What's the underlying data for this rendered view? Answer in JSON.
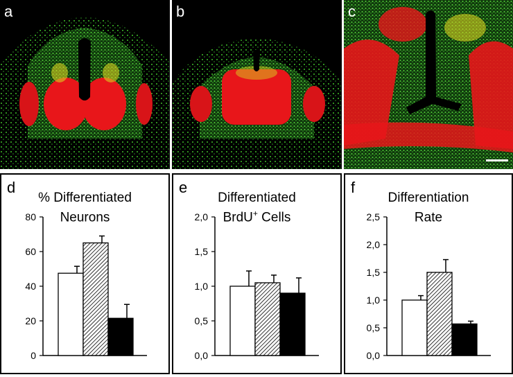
{
  "panels": [
    {
      "label": "a"
    },
    {
      "label": "b"
    },
    {
      "label": "c"
    }
  ],
  "colors": {
    "red": "#e8161a",
    "green": "#3fbf2a",
    "yellow": "#d8d020",
    "background": "#000000"
  },
  "chart_data": [
    {
      "type": "bar",
      "panel_label": "d",
      "title_line1": "% Differentiated",
      "title_line2": "Neurons",
      "title_sup": "",
      "title_line2_tail": "",
      "ylim": [
        0,
        80
      ],
      "yticks": [
        "0",
        "20",
        "40",
        "60",
        "80"
      ],
      "ytick_values": [
        0,
        20,
        40,
        60,
        80
      ],
      "bars": [
        {
          "value": 47.5,
          "error": 4,
          "fill": "white"
        },
        {
          "value": 65,
          "error": 4,
          "fill": "hatched"
        },
        {
          "value": 21.5,
          "error": 8,
          "fill": "black"
        }
      ]
    },
    {
      "type": "bar",
      "panel_label": "e",
      "title_line1": "Differentiated",
      "title_line2": "BrdU",
      "title_sup": "+",
      "title_line2_tail": " Cells",
      "ylim": [
        0,
        2.0
      ],
      "yticks": [
        "0,0",
        "0,5",
        "1,0",
        "1,5",
        "2,0"
      ],
      "ytick_values": [
        0,
        0.5,
        1.0,
        1.5,
        2.0
      ],
      "bars": [
        {
          "value": 1.0,
          "error": 0.22,
          "fill": "white"
        },
        {
          "value": 1.05,
          "error": 0.11,
          "fill": "hatched"
        },
        {
          "value": 0.9,
          "error": 0.22,
          "fill": "black"
        }
      ]
    },
    {
      "type": "bar",
      "panel_label": "f",
      "title_line1": "Differentiation",
      "title_line2": "Rate",
      "title_sup": "",
      "title_line2_tail": "",
      "ylim": [
        0,
        2.5
      ],
      "yticks": [
        "0,0",
        "0,5",
        "1,0",
        "1,5",
        "2,0",
        "2,5"
      ],
      "ytick_values": [
        0,
        0.5,
        1.0,
        1.5,
        2.0,
        2.5
      ],
      "bars": [
        {
          "value": 1.0,
          "error": 0.08,
          "fill": "white"
        },
        {
          "value": 1.5,
          "error": 0.23,
          "fill": "hatched"
        },
        {
          "value": 0.57,
          "error": 0.05,
          "fill": "black"
        }
      ]
    }
  ]
}
